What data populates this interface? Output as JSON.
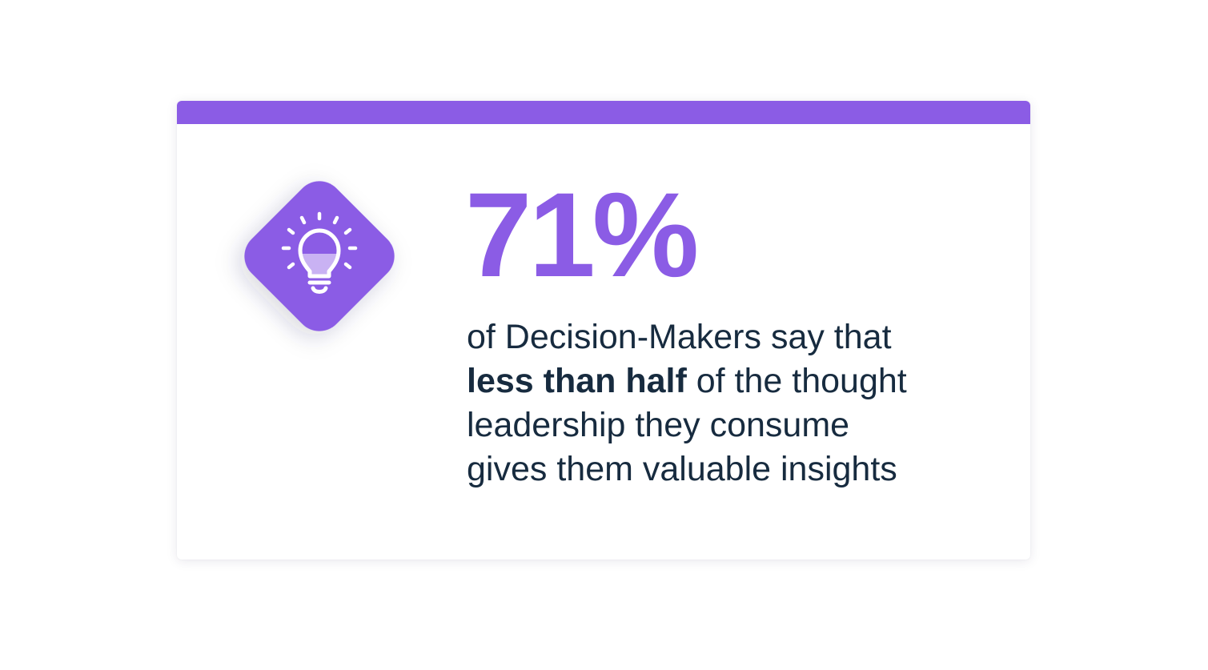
{
  "card": {
    "stat_value": "71%",
    "description_line1": "of Decision-Makers say that",
    "description_emphasis": "less than half",
    "description_line2_rest": " of the thought",
    "description_line3": "leadership they consume",
    "description_line4": "gives them valuable insights",
    "icon": "lightbulb-icon"
  },
  "colors": {
    "accent": "#8b5ce5",
    "text": "#172b3f",
    "background": "#ffffff"
  }
}
